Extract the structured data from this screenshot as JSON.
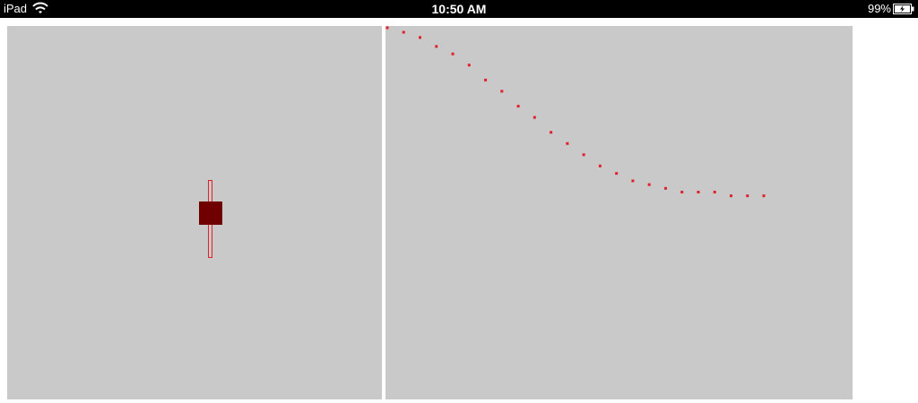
{
  "status_bar": {
    "device": "iPad",
    "time": "10:50 AM",
    "battery": "99%",
    "icons": [
      "wifi-icon",
      "battery-charging-icon"
    ]
  },
  "left_panel": {
    "slider_level": 0.5
  },
  "right_panel": {
    "trail_points": [
      [
        0,
        0.0
      ],
      [
        1,
        0.012
      ],
      [
        2,
        0.026
      ],
      [
        3,
        0.05
      ],
      [
        4,
        0.07
      ],
      [
        5,
        0.1
      ],
      [
        6,
        0.14
      ],
      [
        7,
        0.17
      ],
      [
        8,
        0.21
      ],
      [
        9,
        0.24
      ],
      [
        10,
        0.28
      ],
      [
        11,
        0.31
      ],
      [
        12,
        0.34
      ],
      [
        13,
        0.37
      ],
      [
        14,
        0.39
      ],
      [
        15,
        0.41
      ],
      [
        16,
        0.42
      ],
      [
        17,
        0.43
      ],
      [
        18,
        0.44
      ],
      [
        19,
        0.44
      ],
      [
        20,
        0.44
      ],
      [
        21,
        0.45
      ],
      [
        22,
        0.45
      ],
      [
        23,
        0.45
      ]
    ],
    "color": "#e0202a"
  },
  "colors": {
    "background": "#ffffff",
    "panel": "#c9c9c9",
    "accent": "#e0202a",
    "knob": "#700000"
  }
}
